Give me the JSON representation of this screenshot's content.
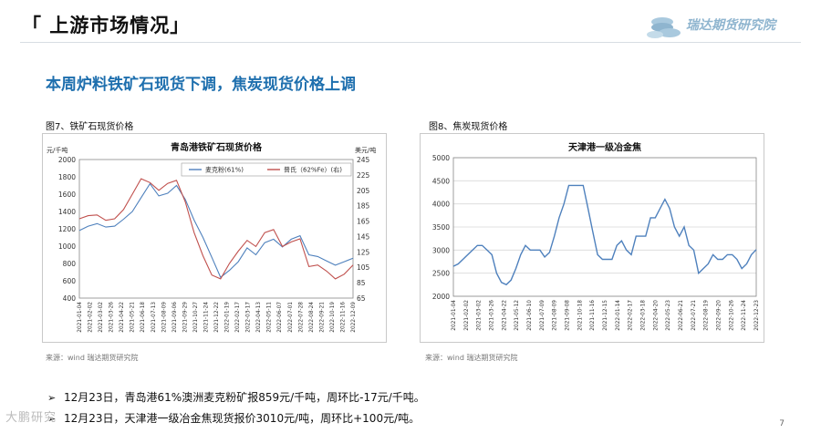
{
  "header": {
    "title": "「 上游市场情况」",
    "logo_text": "瑞达期货研究院"
  },
  "subtitle": "本周炉料铁矿石现货下调，焦炭现货价格上调",
  "figures": [
    {
      "label": "图7、铁矿石现货价格",
      "source": "来源：wind   瑞达期货研究院"
    },
    {
      "label": "图8、焦炭现货价格",
      "source": "来源：wind   瑞达期货研究院"
    }
  ],
  "bullets": [
    "12月23日，青岛港61%澳洲麦克粉矿报859元/千吨，周环比-17元/千吨。",
    "12月23日，天津港一级冶金焦现货报价3010元/吨，周环比+100元/吨。"
  ],
  "page_number": "7",
  "watermark": "大鹏研究",
  "colors": {
    "accent": "#1e6fae",
    "series_blue": "#4f81bd",
    "series_red": "#c0504d",
    "grid": "#d9d9d9"
  },
  "chart_data": [
    {
      "type": "line",
      "title": "青岛港铁矿石现货价格",
      "left_unit": "元/千吨",
      "right_unit": "美元/吨",
      "ylim": [
        400,
        2000
      ],
      "yticks": [
        400,
        600,
        800,
        1000,
        1200,
        1400,
        1600,
        1800,
        2000
      ],
      "y2lim": [
        65,
        245
      ],
      "y2ticks": [
        65,
        85,
        105,
        125,
        145,
        165,
        185,
        205,
        225,
        245
      ],
      "xticks": [
        "2021-01-04",
        "2021-02-02",
        "2021-03-02",
        "2021-03-26",
        "2021-04-22",
        "2021-05-21",
        "2021-06-18",
        "2021-07-13",
        "2021-08-09",
        "2021-09-06",
        "2021-09-29",
        "2021-10-27",
        "2021-11-24",
        "2021-12-22",
        "2022-01-19",
        "2022-02-17",
        "2022-03-17",
        "2022-04-13",
        "2022-05-11",
        "2022-06-07",
        "2022-07-01",
        "2022-07-28",
        "2022-08-24",
        "2022-09-21",
        "2022-10-19",
        "2022-11-16",
        "2022-12-09"
      ],
      "series": [
        {
          "name": "麦克粉(61%)",
          "axis": "left",
          "values": [
            1180,
            1230,
            1260,
            1220,
            1230,
            1310,
            1400,
            1560,
            1720,
            1580,
            1610,
            1700,
            1540,
            1300,
            1100,
            870,
            640,
            720,
            820,
            980,
            900,
            1040,
            1080,
            990,
            1080,
            1120,
            900,
            880,
            830,
            780,
            820,
            860
          ]
        },
        {
          "name": "普氏（62%Fe）(右)",
          "axis": "right",
          "values": [
            168,
            172,
            173,
            166,
            168,
            180,
            200,
            220,
            215,
            205,
            214,
            218,
            190,
            150,
            120,
            95,
            90,
            110,
            126,
            140,
            132,
            150,
            154,
            132,
            138,
            142,
            106,
            108,
            100,
            90,
            96,
            108
          ]
        }
      ]
    },
    {
      "type": "line",
      "title": "天津港一级冶金焦",
      "ylim": [
        2000,
        5000
      ],
      "yticks": [
        2000,
        2500,
        3000,
        3500,
        4000,
        4500,
        5000
      ],
      "xticks": [
        "2021-01-04",
        "2021-02-02",
        "2021-03-02",
        "2021-03-26",
        "2021-04-22",
        "2021-05-12",
        "2021-06-10",
        "2021-07-09",
        "2021-08-09",
        "2021-09-08",
        "2021-10-18",
        "2021-11-16",
        "2021-12-15",
        "2022-01-14",
        "2022-02-17",
        "2022-03-18",
        "2022-04-20",
        "2022-05-23",
        "2022-06-21",
        "2022-07-21",
        "2022-08-19",
        "2022-09-20",
        "2022-10-26",
        "2022-11-24",
        "2022-12-23"
      ],
      "series": [
        {
          "name": "天津港一级冶金焦",
          "axis": "left",
          "values": [
            2650,
            2700,
            2800,
            2900,
            3000,
            3100,
            3100,
            3000,
            2900,
            2500,
            2300,
            2250,
            2350,
            2600,
            2900,
            3100,
            3000,
            3000,
            3000,
            2850,
            2950,
            3300,
            3700,
            4000,
            4400,
            4400,
            4400,
            4400,
            3900,
            3400,
            2900,
            2800,
            2800,
            2800,
            3100,
            3200,
            3000,
            2900,
            3300,
            3300,
            3300,
            3700,
            3700,
            3900,
            4100,
            3900,
            3500,
            3300,
            3500,
            3100,
            3000,
            2500,
            2600,
            2700,
            2900,
            2800,
            2800,
            2900,
            2900,
            2800,
            2600,
            2700,
            2900,
            3010
          ]
        }
      ]
    }
  ]
}
